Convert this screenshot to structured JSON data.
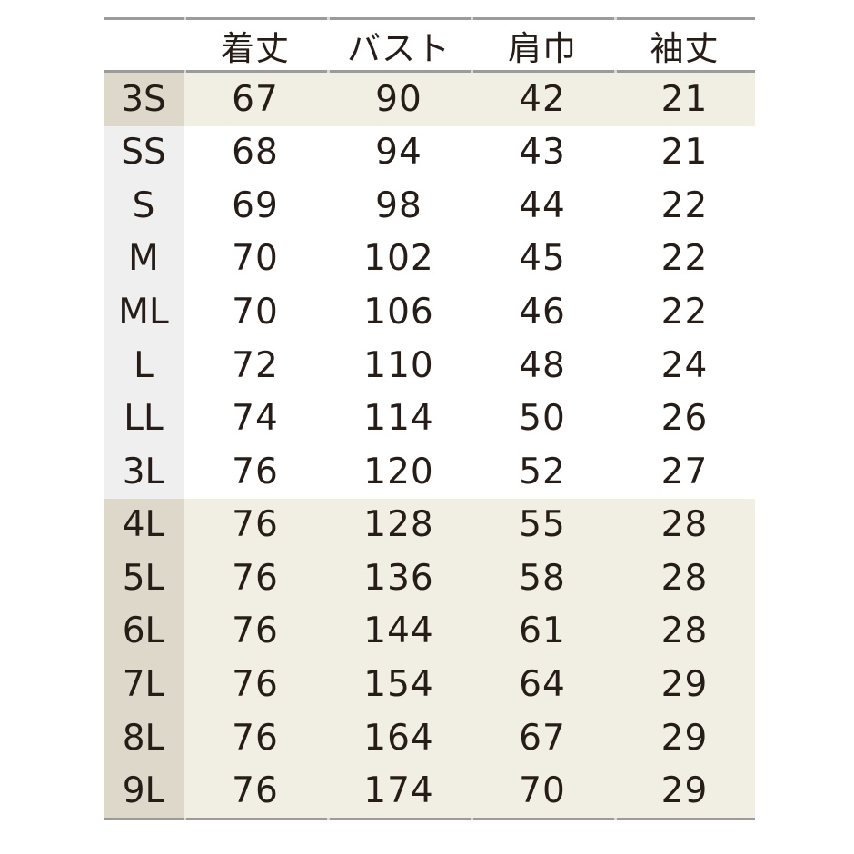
{
  "colors": {
    "border": "#9b9b9b",
    "border_notch": "#d8d8d8",
    "text": "#261d18",
    "highlight_label_bg": "#ded8ca",
    "highlight_data_bg": "#f1eee4",
    "normal_label_bg": "#efefef",
    "normal_data_bg": "#ffffff",
    "page_bg": "#ffffff"
  },
  "chart_data": {
    "type": "table",
    "columns": [
      "着丈",
      "バスト",
      "肩巾",
      "袖丈"
    ],
    "row_header_label": "",
    "rows": [
      {
        "size": "3S",
        "values": [
          67,
          90,
          42,
          21
        ],
        "highlighted": true
      },
      {
        "size": "SS",
        "values": [
          68,
          94,
          43,
          21
        ],
        "highlighted": false
      },
      {
        "size": "S",
        "values": [
          69,
          98,
          44,
          22
        ],
        "highlighted": false
      },
      {
        "size": "M",
        "values": [
          70,
          102,
          45,
          22
        ],
        "highlighted": false
      },
      {
        "size": "ML",
        "values": [
          70,
          106,
          46,
          22
        ],
        "highlighted": false
      },
      {
        "size": "L",
        "values": [
          72,
          110,
          48,
          24
        ],
        "highlighted": false
      },
      {
        "size": "LL",
        "values": [
          74,
          114,
          50,
          26
        ],
        "highlighted": false
      },
      {
        "size": "3L",
        "values": [
          76,
          120,
          52,
          27
        ],
        "highlighted": false
      },
      {
        "size": "4L",
        "values": [
          76,
          128,
          55,
          28
        ],
        "highlighted": true
      },
      {
        "size": "5L",
        "values": [
          76,
          136,
          58,
          28
        ],
        "highlighted": true
      },
      {
        "size": "6L",
        "values": [
          76,
          144,
          61,
          28
        ],
        "highlighted": true
      },
      {
        "size": "7L",
        "values": [
          76,
          154,
          64,
          29
        ],
        "highlighted": true
      },
      {
        "size": "8L",
        "values": [
          76,
          164,
          67,
          29
        ],
        "highlighted": true
      },
      {
        "size": "9L",
        "values": [
          76,
          174,
          70,
          29
        ],
        "highlighted": true
      }
    ]
  }
}
